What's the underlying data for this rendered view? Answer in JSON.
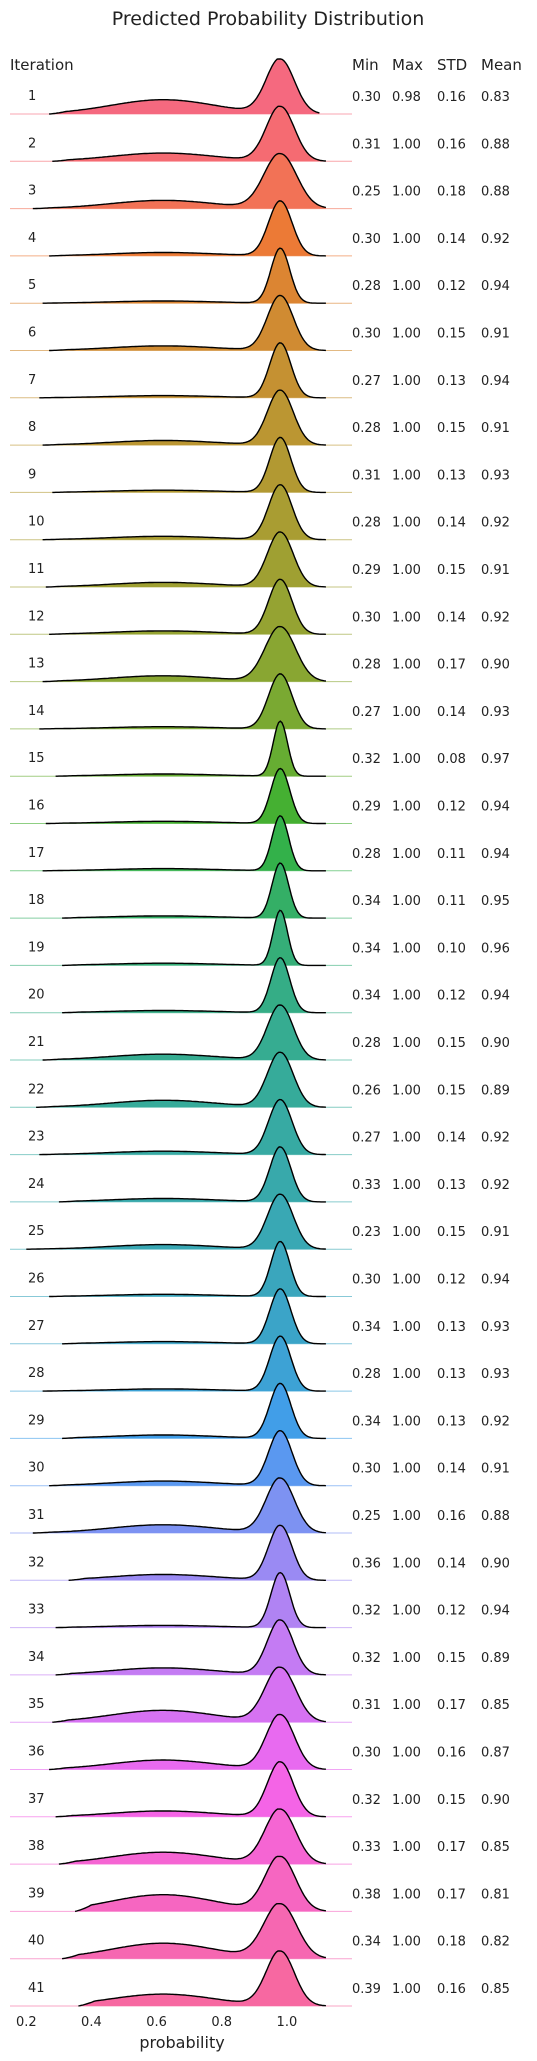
{
  "chart_data": {
    "type": "ridgeline",
    "title": "Predicted Probability Distribution",
    "xlabel": "probability",
    "xlim": [
      0.15,
      1.2
    ],
    "xticks": [
      0.2,
      0.4,
      0.6,
      0.8,
      1.0
    ],
    "xtick_labels": [
      "0.2",
      "0.4",
      "0.6",
      "0.8",
      "1.0"
    ],
    "row_header": "Iteration",
    "stat_headers": [
      "Min",
      "Max",
      "STD",
      "Mean"
    ],
    "grid": false,
    "series": [
      {
        "name": "1",
        "min": "0.30",
        "max": "0.98",
        "std": "0.16",
        "mean": "0.83",
        "color": "#f5697f"
      },
      {
        "name": "2",
        "min": "0.31",
        "max": "1.00",
        "std": "0.16",
        "mean": "0.88",
        "color": "#f56b72"
      },
      {
        "name": "3",
        "min": "0.25",
        "max": "1.00",
        "std": "0.18",
        "mean": "0.88",
        "color": "#f27256"
      },
      {
        "name": "4",
        "min": "0.30",
        "max": "1.00",
        "std": "0.14",
        "mean": "0.92",
        "color": "#ec7a36"
      },
      {
        "name": "5",
        "min": "0.28",
        "max": "1.00",
        "std": "0.12",
        "mean": "0.94",
        "color": "#dc8532"
      },
      {
        "name": "6",
        "min": "0.30",
        "max": "1.00",
        "std": "0.15",
        "mean": "0.91",
        "color": "#d08b32"
      },
      {
        "name": "7",
        "min": "0.27",
        "max": "1.00",
        "std": "0.13",
        "mean": "0.94",
        "color": "#c59132"
      },
      {
        "name": "8",
        "min": "0.28",
        "max": "1.00",
        "std": "0.15",
        "mean": "0.91",
        "color": "#bb9632"
      },
      {
        "name": "9",
        "min": "0.31",
        "max": "1.00",
        "std": "0.13",
        "mean": "0.93",
        "color": "#b29932"
      },
      {
        "name": "10",
        "min": "0.28",
        "max": "1.00",
        "std": "0.14",
        "mean": "0.92",
        "color": "#a99d32"
      },
      {
        "name": "11",
        "min": "0.29",
        "max": "1.00",
        "std": "0.15",
        "mean": "0.91",
        "color": "#9fa032"
      },
      {
        "name": "12",
        "min": "0.30",
        "max": "1.00",
        "std": "0.14",
        "mean": "0.92",
        "color": "#95a332"
      },
      {
        "name": "13",
        "min": "0.28",
        "max": "1.00",
        "std": "0.17",
        "mean": "0.90",
        "color": "#89a632"
      },
      {
        "name": "14",
        "min": "0.27",
        "max": "1.00",
        "std": "0.14",
        "mean": "0.93",
        "color": "#7aa932"
      },
      {
        "name": "15",
        "min": "0.32",
        "max": "1.00",
        "std": "0.08",
        "mean": "0.97",
        "color": "#66ad32"
      },
      {
        "name": "16",
        "min": "0.29",
        "max": "1.00",
        "std": "0.12",
        "mean": "0.94",
        "color": "#45b032"
      },
      {
        "name": "17",
        "min": "0.28",
        "max": "1.00",
        "std": "0.11",
        "mean": "0.94",
        "color": "#33b14a"
      },
      {
        "name": "18",
        "min": "0.34",
        "max": "1.00",
        "std": "0.11",
        "mean": "0.95",
        "color": "#34af66"
      },
      {
        "name": "19",
        "min": "0.34",
        "max": "1.00",
        "std": "0.10",
        "mean": "0.96",
        "color": "#35ae78"
      },
      {
        "name": "20",
        "min": "0.34",
        "max": "1.00",
        "std": "0.12",
        "mean": "0.94",
        "color": "#35ad86"
      },
      {
        "name": "21",
        "min": "0.28",
        "max": "1.00",
        "std": "0.15",
        "mean": "0.90",
        "color": "#36ac91"
      },
      {
        "name": "22",
        "min": "0.26",
        "max": "1.00",
        "std": "0.15",
        "mean": "0.89",
        "color": "#36ab9a"
      },
      {
        "name": "23",
        "min": "0.27",
        "max": "1.00",
        "std": "0.14",
        "mean": "0.92",
        "color": "#37aaa3"
      },
      {
        "name": "24",
        "min": "0.33",
        "max": "1.00",
        "std": "0.13",
        "mean": "0.92",
        "color": "#38a9ab"
      },
      {
        "name": "25",
        "min": "0.23",
        "max": "1.00",
        "std": "0.15",
        "mean": "0.91",
        "color": "#39a8b4"
      },
      {
        "name": "26",
        "min": "0.30",
        "max": "1.00",
        "std": "0.12",
        "mean": "0.94",
        "color": "#3aa6bd"
      },
      {
        "name": "27",
        "min": "0.34",
        "max": "1.00",
        "std": "0.13",
        "mean": "0.93",
        "color": "#3ba4c8"
      },
      {
        "name": "28",
        "min": "0.28",
        "max": "1.00",
        "std": "0.13",
        "mean": "0.93",
        "color": "#3da2d5"
      },
      {
        "name": "29",
        "min": "0.34",
        "max": "1.00",
        "std": "0.13",
        "mean": "0.92",
        "color": "#419ee8"
      },
      {
        "name": "30",
        "min": "0.30",
        "max": "1.00",
        "std": "0.14",
        "mean": "0.91",
        "color": "#5a98f0"
      },
      {
        "name": "31",
        "min": "0.25",
        "max": "1.00",
        "std": "0.16",
        "mean": "0.88",
        "color": "#7d92f2"
      },
      {
        "name": "32",
        "min": "0.36",
        "max": "1.00",
        "std": "0.14",
        "mean": "0.90",
        "color": "#9a8af3"
      },
      {
        "name": "33",
        "min": "0.32",
        "max": "1.00",
        "std": "0.12",
        "mean": "0.94",
        "color": "#b083f3"
      },
      {
        "name": "34",
        "min": "0.32",
        "max": "1.00",
        "std": "0.15",
        "mean": "0.89",
        "color": "#c47bf3"
      },
      {
        "name": "35",
        "min": "0.31",
        "max": "1.00",
        "std": "0.17",
        "mean": "0.85",
        "color": "#d672f2"
      },
      {
        "name": "36",
        "min": "0.30",
        "max": "1.00",
        "std": "0.16",
        "mean": "0.87",
        "color": "#e86af0"
      },
      {
        "name": "37",
        "min": "0.32",
        "max": "1.00",
        "std": "0.15",
        "mean": "0.90",
        "color": "#f464e6"
      },
      {
        "name": "38",
        "min": "0.33",
        "max": "1.00",
        "std": "0.17",
        "mean": "0.85",
        "color": "#f565d3"
      },
      {
        "name": "39",
        "min": "0.38",
        "max": "1.00",
        "std": "0.17",
        "mean": "0.81",
        "color": "#f666c1"
      },
      {
        "name": "40",
        "min": "0.34",
        "max": "1.00",
        "std": "0.18",
        "mean": "0.82",
        "color": "#f667b1"
      },
      {
        "name": "41",
        "min": "0.39",
        "max": "1.00",
        "std": "0.16",
        "mean": "0.85",
        "color": "#f768a1"
      }
    ]
  }
}
